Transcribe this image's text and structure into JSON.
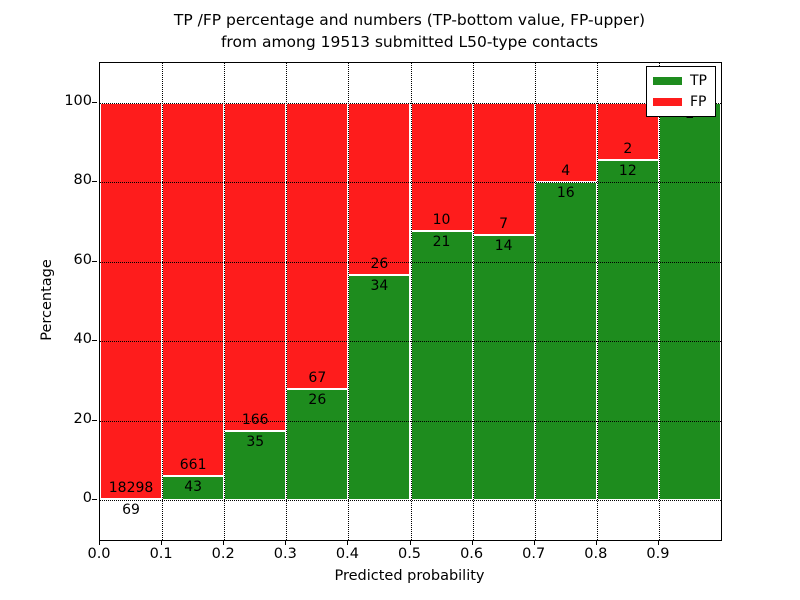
{
  "title_line1": "TP /FP percentage and numbers (TP-bottom value, FP-upper)",
  "title_line2": "from among 19513 submitted L50-type contacts",
  "total_contacts": 19513,
  "chart_data": {
    "type": "bar",
    "stacked": true,
    "normalized": "percent",
    "title": "TP /FP percentage and numbers (TP-bottom value, FP-upper) from among 19513 submitted L50-type contacts",
    "xlabel": "Predicted probability",
    "ylabel": "Percentage",
    "bin_edges": [
      0.0,
      0.1,
      0.2,
      0.3,
      0.4,
      0.5,
      0.6,
      0.7,
      0.8,
      0.9,
      1.0
    ],
    "categories": [
      "0.0-0.1",
      "0.1-0.2",
      "0.2-0.3",
      "0.3-0.4",
      "0.4-0.5",
      "0.5-0.6",
      "0.6-0.7",
      "0.7-0.8",
      "0.8-0.9",
      "0.9-1.0"
    ],
    "series": [
      {
        "name": "TP",
        "color": "#1e8c1e",
        "counts": [
          69,
          43,
          35,
          26,
          34,
          21,
          14,
          16,
          12,
          2
        ]
      },
      {
        "name": "FP",
        "color": "#fe1c1c",
        "counts": [
          18298,
          661,
          166,
          67,
          26,
          10,
          7,
          4,
          2,
          0
        ]
      }
    ],
    "tp_percent": [
      0.4,
      6.1,
      17.4,
      28.0,
      56.7,
      67.7,
      66.7,
      80.0,
      85.7,
      100.0
    ],
    "x_ticks": [
      "0.0",
      "0.1",
      "0.2",
      "0.3",
      "0.4",
      "0.5",
      "0.6",
      "0.7",
      "0.8",
      "0.9"
    ],
    "x_tick_values": [
      0.0,
      0.1,
      0.2,
      0.3,
      0.4,
      0.5,
      0.6,
      0.7,
      0.8,
      0.9
    ],
    "y_ticks": [
      0,
      20,
      40,
      60,
      80,
      100
    ],
    "xlim": [
      0.0,
      1.0
    ],
    "ylim": [
      -10,
      110
    ],
    "grid": "dotted",
    "legend": {
      "position": "upper right",
      "entries": [
        {
          "label": "TP",
          "color": "#1e8c1e"
        },
        {
          "label": "FP",
          "color": "#fe1c1c"
        }
      ]
    }
  }
}
